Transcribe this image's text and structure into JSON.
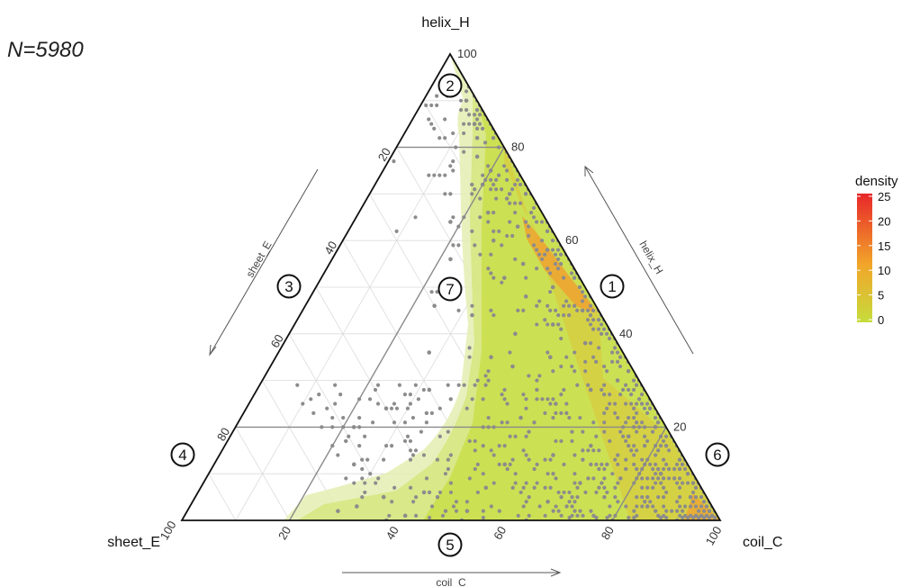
{
  "sample_size_label": "N=5980",
  "legend": {
    "title": "density",
    "ticks": [
      "25",
      "20",
      "15",
      "10",
      "5",
      "0"
    ],
    "colors": {
      "low": "#c6dc3c",
      "mid": "#f2a52a",
      "high": "#e8262a"
    }
  },
  "chart_data": {
    "type": "scatter",
    "subtype": "ternary",
    "axes": {
      "top": {
        "name": "helix_H",
        "arrow_label": "helix_H",
        "ticks": [
          "20",
          "40",
          "60",
          "80",
          "100"
        ]
      },
      "left": {
        "name": "sheet_E",
        "arrow_label": "sheet_E",
        "ticks": [
          "20",
          "40",
          "60",
          "80",
          "100"
        ]
      },
      "right": {
        "name": "coil_C",
        "arrow_label": "coil_C",
        "ticks": [
          "20",
          "40",
          "60",
          "80",
          "100"
        ]
      }
    },
    "axis_range": [
      0,
      100
    ],
    "grid": true,
    "density_overlay": true,
    "point_color": "#8c8c8c",
    "point_count": 5980,
    "region_markers": [
      "1",
      "2",
      "3",
      "4",
      "5",
      "6",
      "7"
    ],
    "reference_lines": [
      {
        "variable": "helix_H",
        "value": 80
      },
      {
        "variable": "helix_H",
        "value": 20
      },
      {
        "variable": "coil_C",
        "value": 20
      },
      {
        "variable": "coil_C",
        "value": 80
      }
    ],
    "sample_points_HEC": [
      [
        100,
        0,
        0
      ],
      [
        93,
        0,
        7
      ],
      [
        90,
        2,
        8
      ],
      [
        88,
        0,
        12
      ],
      [
        85,
        3,
        12
      ],
      [
        82,
        4,
        14
      ],
      [
        78,
        6,
        16
      ],
      [
        75,
        5,
        20
      ],
      [
        72,
        8,
        20
      ],
      [
        70,
        4,
        26
      ],
      [
        66,
        10,
        24
      ],
      [
        63,
        6,
        31
      ],
      [
        60,
        12,
        28
      ],
      [
        58,
        3,
        39
      ],
      [
        55,
        9,
        36
      ],
      [
        52,
        14,
        34
      ],
      [
        50,
        6,
        44
      ],
      [
        48,
        12,
        40
      ],
      [
        45,
        3,
        52
      ],
      [
        42,
        10,
        48
      ],
      [
        40,
        18,
        42
      ],
      [
        38,
        6,
        56
      ],
      [
        35,
        14,
        51
      ],
      [
        33,
        22,
        45
      ],
      [
        30,
        4,
        66
      ],
      [
        28,
        10,
        62
      ],
      [
        25,
        18,
        57
      ],
      [
        22,
        26,
        52
      ],
      [
        20,
        2,
        78
      ],
      [
        18,
        8,
        74
      ],
      [
        16,
        16,
        68
      ],
      [
        14,
        24,
        62
      ],
      [
        12,
        34,
        54
      ],
      [
        10,
        6,
        84
      ],
      [
        9,
        14,
        77
      ],
      [
        8,
        22,
        70
      ],
      [
        7,
        40,
        53
      ],
      [
        6,
        52,
        42
      ],
      [
        5,
        60,
        35
      ],
      [
        4,
        30,
        66
      ],
      [
        3,
        12,
        85
      ],
      [
        2,
        46,
        52
      ],
      [
        2,
        70,
        28
      ],
      [
        1,
        58,
        41
      ],
      [
        0,
        36,
        64
      ],
      [
        0,
        20,
        80
      ],
      [
        0,
        8,
        92
      ],
      [
        0,
        48,
        52
      ],
      [
        0,
        62,
        38
      ],
      [
        3,
        66,
        31
      ],
      [
        12,
        62,
        26
      ],
      [
        20,
        58,
        22
      ],
      [
        28,
        40,
        32
      ],
      [
        24,
        50,
        26
      ],
      [
        36,
        36,
        28
      ],
      [
        44,
        24,
        32
      ],
      [
        46,
        30,
        24
      ],
      [
        56,
        22,
        22
      ],
      [
        64,
        18,
        18
      ],
      [
        35,
        25,
        40
      ]
    ]
  }
}
